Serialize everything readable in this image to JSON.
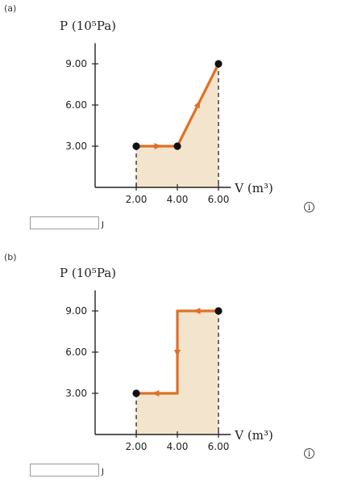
{
  "parts": [
    {
      "label": "(a)",
      "answer": {
        "value": "",
        "unit": "J"
      },
      "info_icon": "info-icon",
      "chart_data": {
        "type": "line",
        "y_axis_label": "P (10⁵Pa)",
        "x_axis_label": "V (m³)",
        "x_tick_labels": [
          "2.00",
          "4.00",
          "6.00"
        ],
        "y_tick_labels": [
          "3.00",
          "6.00",
          "9.00"
        ],
        "xlim": [
          0,
          6.6
        ],
        "ylim": [
          0,
          10.5
        ],
        "path": [
          {
            "V": 2.0,
            "P": 3.0
          },
          {
            "V": 4.0,
            "P": 3.0
          },
          {
            "V": 6.0,
            "P": 9.0
          }
        ],
        "shaded_area": true,
        "path_color": "#e07028",
        "fill_color": "#f3e5cd"
      }
    },
    {
      "label": "(b)",
      "answer": {
        "value": "",
        "unit": "J"
      },
      "info_icon": "info-icon",
      "chart_data": {
        "type": "line",
        "y_axis_label": "P (10⁵Pa)",
        "x_axis_label": "V (m³)",
        "x_tick_labels": [
          "2.00",
          "4.00",
          "6.00"
        ],
        "y_tick_labels": [
          "3.00",
          "6.00",
          "9.00"
        ],
        "xlim": [
          0,
          6.6
        ],
        "ylim": [
          0,
          10.5
        ],
        "path": [
          {
            "V": 6.0,
            "P": 9.0
          },
          {
            "V": 4.0,
            "P": 9.0
          },
          {
            "V": 4.0,
            "P": 3.0
          },
          {
            "V": 2.0,
            "P": 3.0
          }
        ],
        "shaded_area": true,
        "path_color": "#e07028",
        "fill_color": "#f3e5cd"
      }
    }
  ]
}
